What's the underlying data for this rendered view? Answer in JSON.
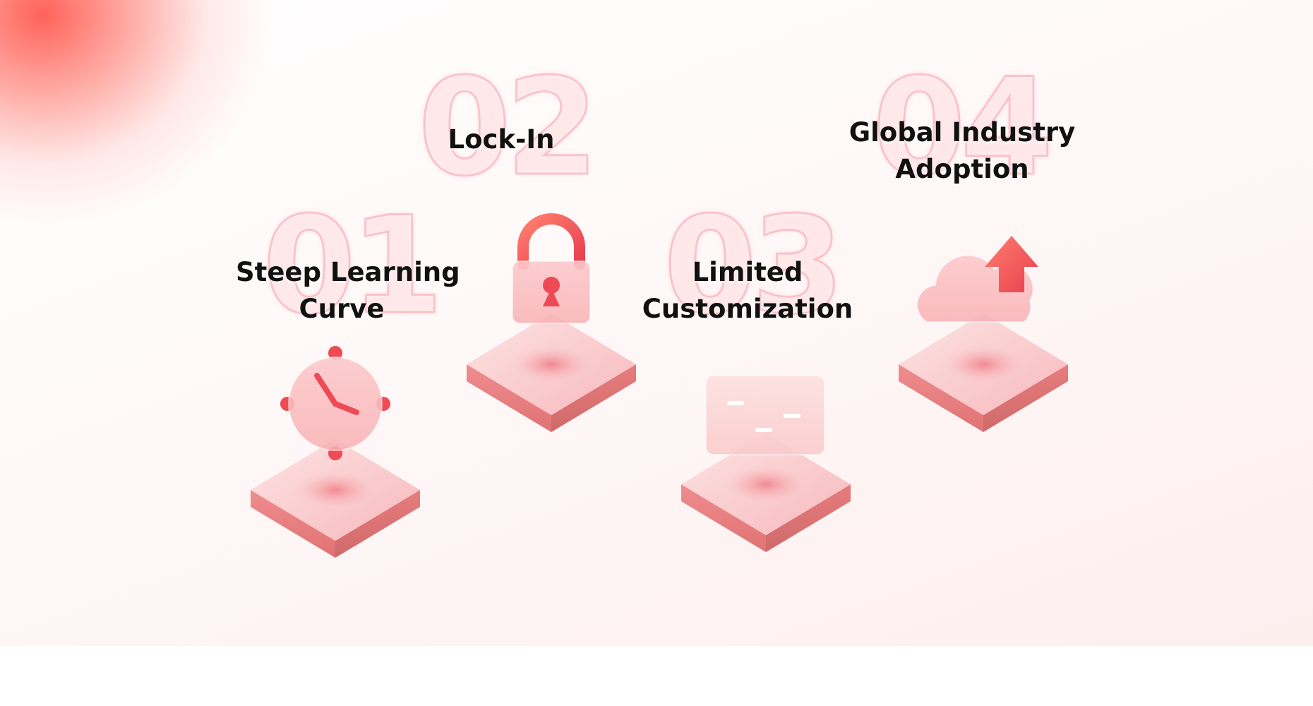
{
  "items": [
    {
      "number": "01",
      "label_line1": "Steep Learning",
      "label_line2": "Curve",
      "icon": "clock-icon"
    },
    {
      "number": "02",
      "label_line1": "Lock-In",
      "label_line2": "",
      "icon": "padlock-icon"
    },
    {
      "number": "03",
      "label_line1": "Limited",
      "label_line2": "Customization",
      "icon": "sliders-icon"
    },
    {
      "number": "04",
      "label_line1": "Global Industry",
      "label_line2": "Adoption",
      "icon": "cloud-upload-icon"
    }
  ],
  "colors": {
    "accent": "#f25a5a",
    "accent_light": "#ff9a9a",
    "platform_top": "#fbd0d2",
    "platform_side": "#e88484",
    "text": "#111111"
  }
}
